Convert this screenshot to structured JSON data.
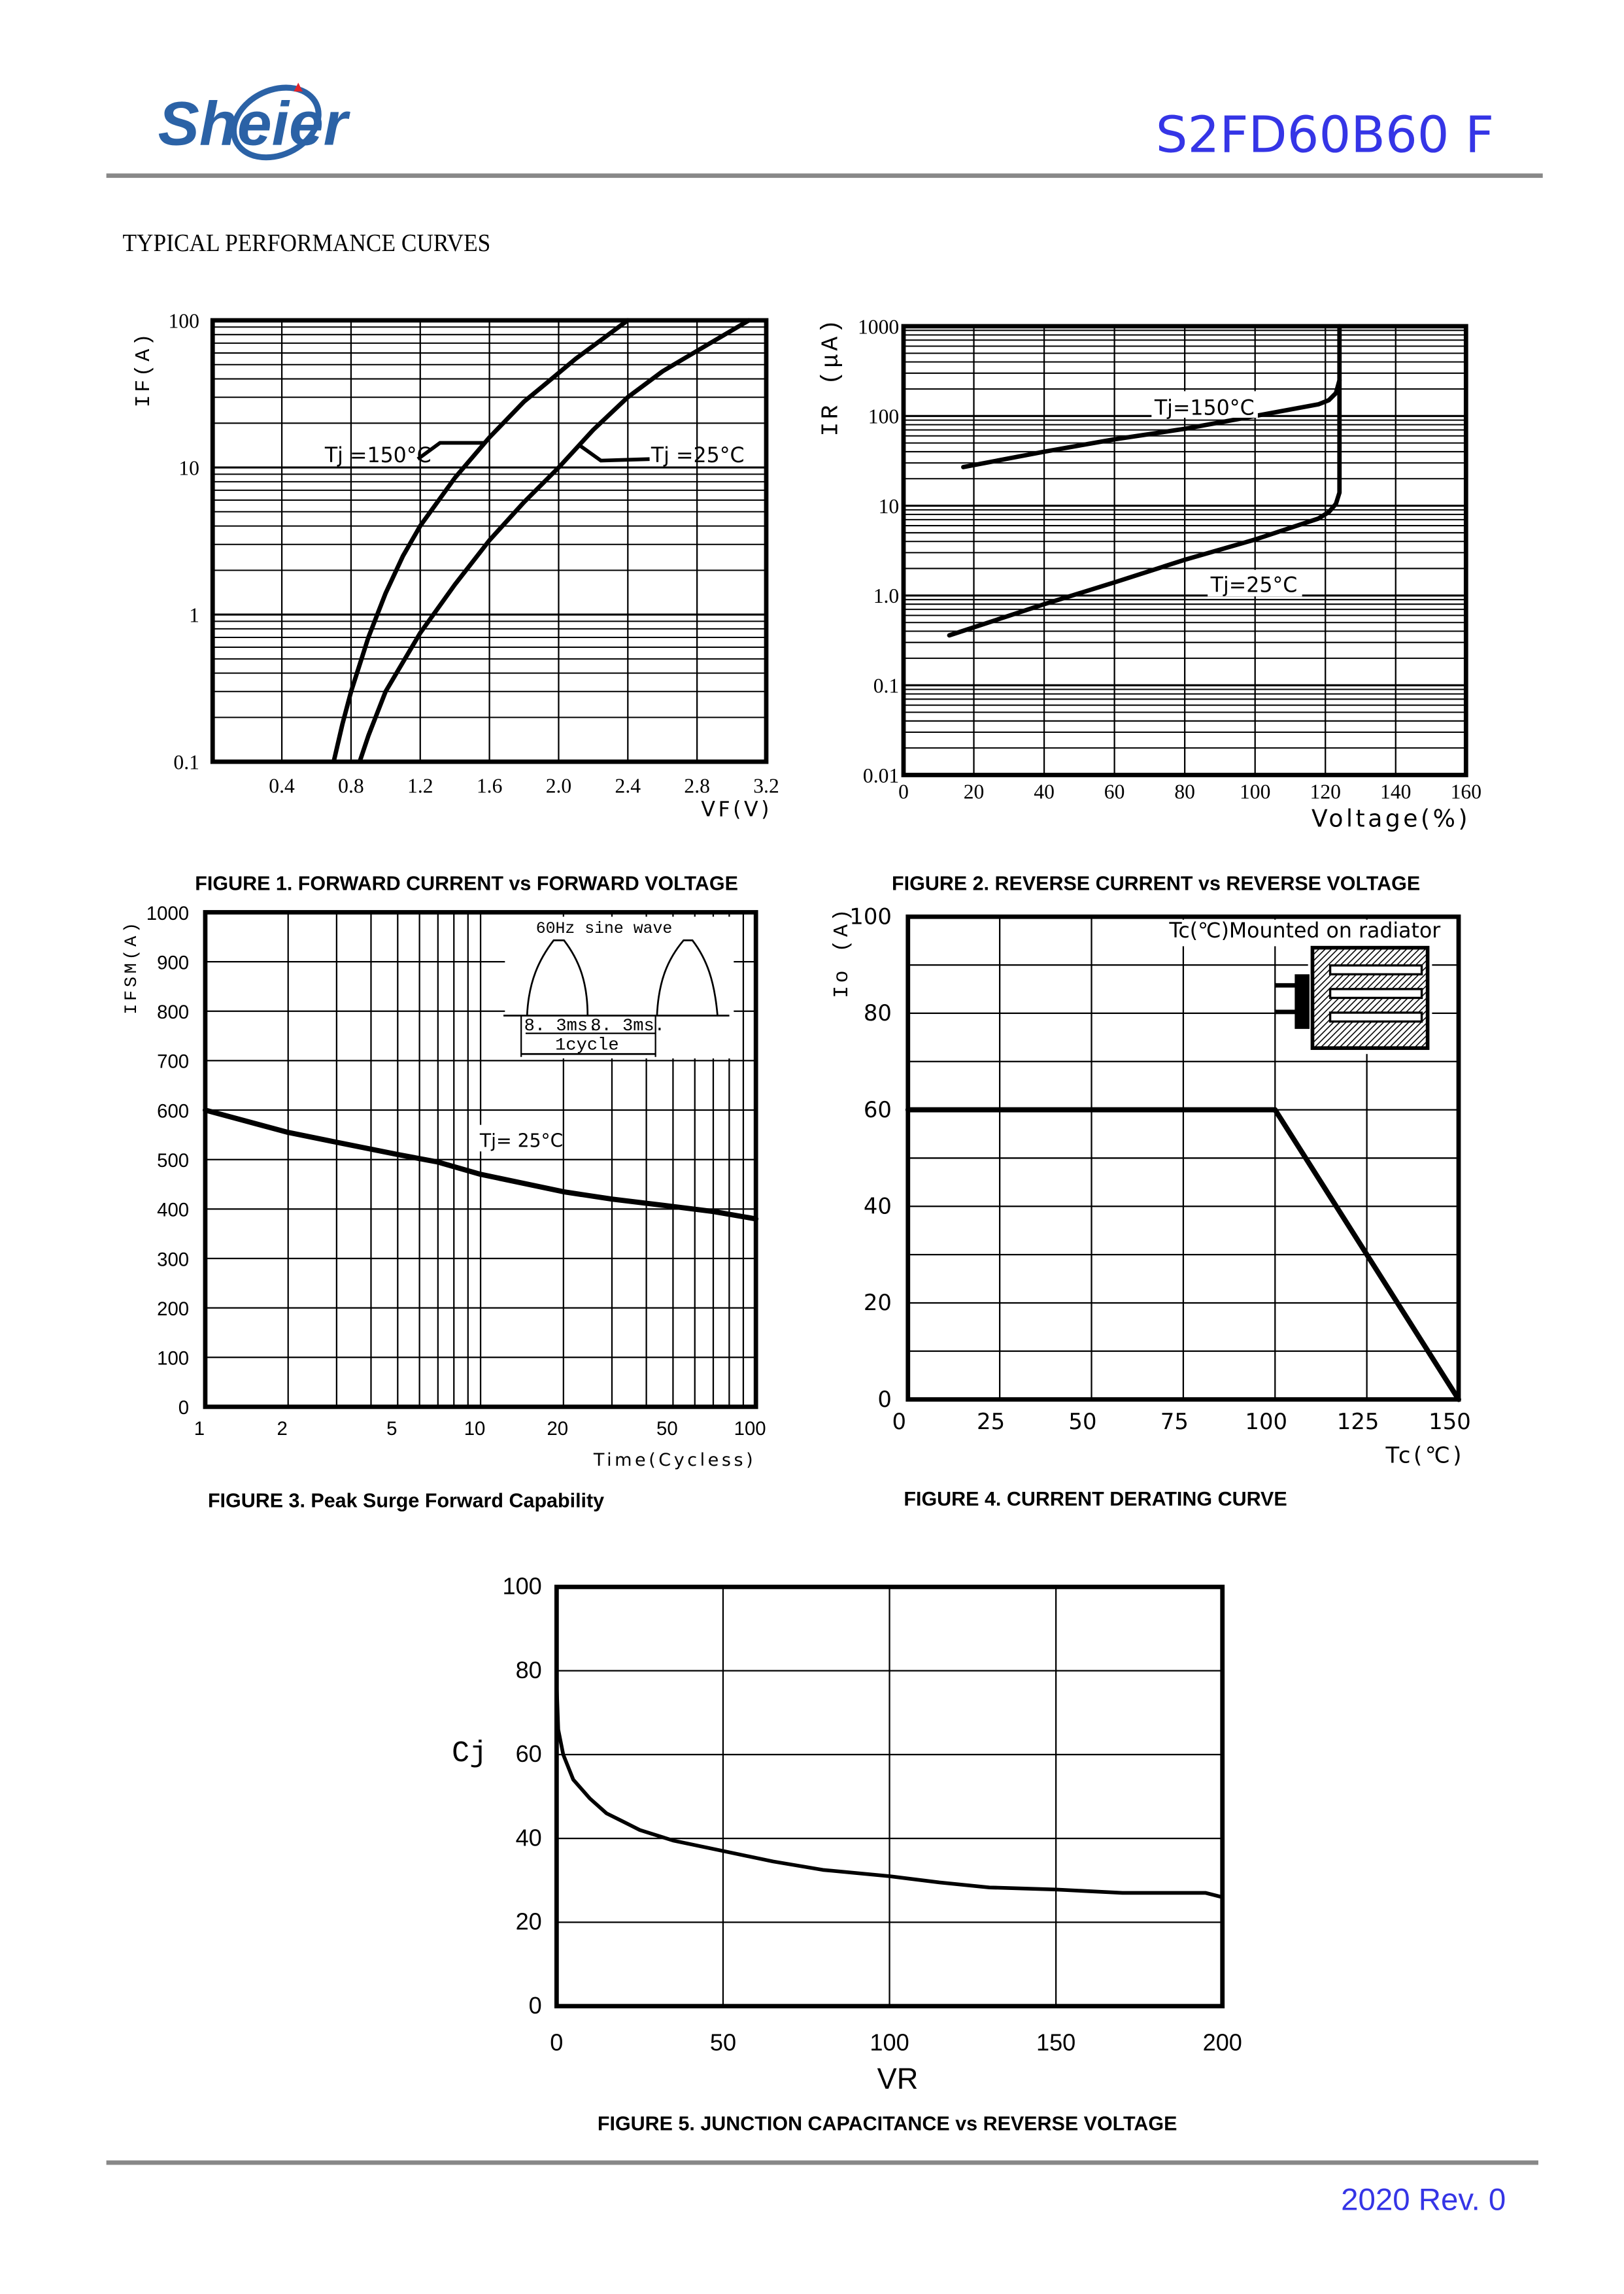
{
  "header": {
    "logo_text": "Sheier",
    "part_number": "S2FD60B60 F",
    "section_title": "TYPICAL PERFORMANCE CURVES"
  },
  "footer": {
    "revision": "2020  Rev. 0"
  },
  "colors": {
    "brand_blue": "#2b62a6",
    "title_blue": "#3535e6",
    "rule_gray": "#888888",
    "ink": "#000000"
  },
  "chart_data": [
    {
      "type": "line",
      "title": "FIGURE 1. FORWARD CURRENT vs FORWARD VOLTAGE",
      "xlabel": "VF(V)",
      "ylabel": "IF(A)",
      "xscale": "linear",
      "yscale": "log",
      "xlim": [
        0,
        3.2
      ],
      "ylim": [
        0.1,
        100
      ],
      "x_ticks": [
        "0.4",
        "0.8",
        "1.2",
        "1.6",
        "2.0",
        "2.4",
        "2.8",
        "3.2"
      ],
      "y_ticks": [
        "0.1",
        "1",
        "10",
        "100"
      ],
      "grid": true,
      "annotations": [
        "Tj =150°C",
        "Tj =25°C"
      ],
      "series": [
        {
          "name": "Tj =150°C",
          "x": [
            0.7,
            0.75,
            0.8,
            0.9,
            1.0,
            1.1,
            1.2,
            1.4,
            1.6,
            1.8,
            1.9,
            2.1,
            2.4
          ],
          "y": [
            0.1,
            0.18,
            0.3,
            0.7,
            1.4,
            2.5,
            4.0,
            8.5,
            16,
            28,
            35,
            55,
            100
          ]
        },
        {
          "name": "Tj =25°C",
          "x": [
            0.85,
            0.9,
            1.0,
            1.2,
            1.4,
            1.6,
            1.8,
            2.0,
            2.2,
            2.4,
            2.6,
            2.8,
            3.1
          ],
          "y": [
            0.1,
            0.15,
            0.3,
            0.75,
            1.6,
            3.2,
            5.8,
            10,
            18,
            30,
            45,
            62,
            100
          ]
        }
      ]
    },
    {
      "type": "line",
      "title": "FIGURE 2. REVERSE CURRENT vs REVERSE VOLTAGE",
      "xlabel": "Voltage(%)",
      "ylabel": "IR (μA)",
      "xscale": "linear",
      "yscale": "log",
      "xlim": [
        0,
        160
      ],
      "ylim": [
        0.01,
        1000
      ],
      "x_ticks": [
        "0",
        "20",
        "40",
        "60",
        "80",
        "100",
        "120",
        "140",
        "160"
      ],
      "y_ticks": [
        "0.01",
        "0.1",
        "1.0",
        "10",
        "100",
        "1000"
      ],
      "grid": true,
      "annotations": [
        "Tj=150°C",
        "Tj=25°C"
      ],
      "series": [
        {
          "name": "Tj=150°C",
          "x": [
            17,
            40,
            60,
            80,
            100,
            118,
            121,
            123,
            124,
            124
          ],
          "y": [
            27,
            40,
            55,
            72,
            100,
            135,
            150,
            180,
            250,
            1000
          ]
        },
        {
          "name": "Tj=25°C",
          "x": [
            13,
            40,
            60,
            80,
            100,
            118,
            121,
            123,
            124,
            124
          ],
          "y": [
            0.36,
            0.8,
            1.4,
            2.5,
            4.2,
            7.2,
            8.5,
            10.5,
            14,
            250
          ]
        }
      ]
    },
    {
      "type": "line",
      "title": "FIGURE 3. Peak Surge Forward Capability",
      "xlabel": "Time(Cycless)",
      "ylabel": "IFSM(A)",
      "xscale": "log",
      "yscale": "linear",
      "xlim": [
        1,
        100
      ],
      "ylim": [
        0,
        1000
      ],
      "x_ticks": [
        "1",
        "2",
        "5",
        "10",
        "20",
        "50",
        "100"
      ],
      "y_ticks": [
        "0",
        "100",
        "200",
        "300",
        "400",
        "500",
        "600",
        "700",
        "800",
        "900",
        "1000"
      ],
      "grid": true,
      "annotations": [
        "Tj= 25°C",
        "60Hz sine wave",
        "8. 3ms.",
        "8. 3ms.",
        "1cycle"
      ],
      "series": [
        {
          "name": "Tj= 25°C",
          "x": [
            1,
            2,
            3,
            5,
            7,
            10,
            20,
            30,
            50,
            70,
            100
          ],
          "y": [
            600,
            555,
            535,
            510,
            495,
            470,
            435,
            420,
            405,
            395,
            380
          ]
        }
      ]
    },
    {
      "type": "line",
      "title": "FIGURE 4. CURRENT DERATING CURVE",
      "xlabel": "Tc(℃)",
      "ylabel": "Io (A)",
      "xscale": "linear",
      "yscale": "linear",
      "xlim": [
        0,
        150
      ],
      "ylim": [
        0,
        100
      ],
      "x_ticks": [
        "0",
        "25",
        "50",
        "75",
        "100",
        "125",
        "150"
      ],
      "y_ticks": [
        "0",
        "20",
        "40",
        "60",
        "80",
        "100"
      ],
      "grid": true,
      "annotations": [
        "Tc(℃)Mounted on radiator"
      ],
      "series": [
        {
          "name": "Io",
          "x": [
            0,
            100,
            150
          ],
          "y": [
            60,
            60,
            0
          ]
        }
      ]
    },
    {
      "type": "line",
      "title": "FIGURE 5. JUNCTION CAPACITANCE vs REVERSE VOLTAGE",
      "xlabel": "VR",
      "ylabel": "Cj",
      "xscale": "linear",
      "yscale": "linear",
      "xlim": [
        0,
        200
      ],
      "ylim": [
        0,
        100
      ],
      "x_ticks": [
        "0",
        "50",
        "100",
        "150",
        "200"
      ],
      "y_ticks": [
        "0",
        "20",
        "40",
        "60",
        "80",
        "100"
      ],
      "grid": true,
      "series": [
        {
          "name": "Cj",
          "x": [
            0,
            0.5,
            2,
            5,
            10,
            15,
            20,
            25,
            35,
            50,
            65,
            80,
            100,
            115,
            130,
            150,
            170,
            195,
            200
          ],
          "y": [
            77,
            66,
            60,
            54,
            49.5,
            46,
            44,
            42,
            39.5,
            37,
            34.5,
            32.5,
            31,
            29.5,
            28.3,
            27.8,
            27,
            27,
            26
          ]
        }
      ]
    }
  ]
}
